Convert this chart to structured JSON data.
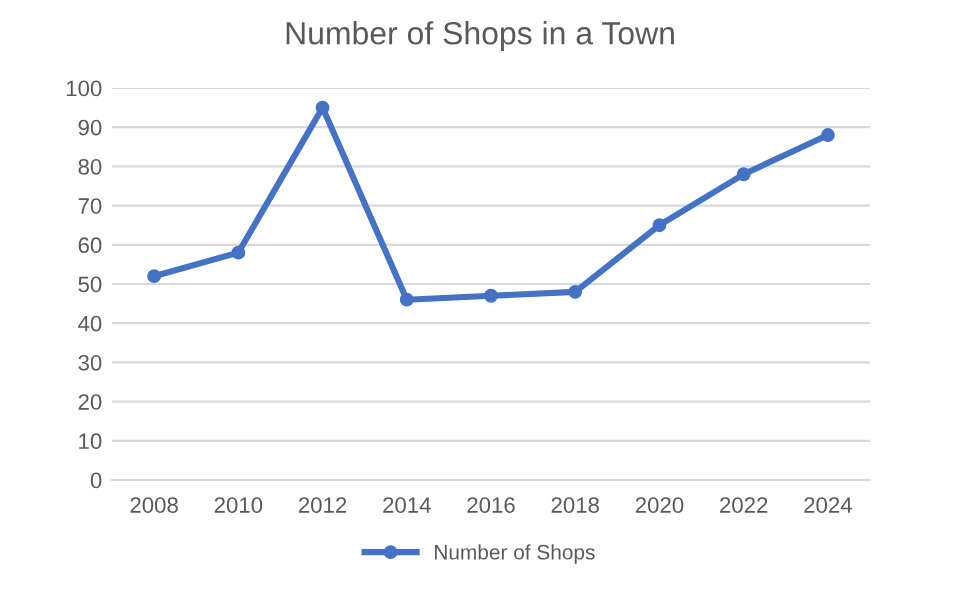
{
  "chart_data": {
    "type": "line",
    "title": "Number of Shops in a Town",
    "categories": [
      "2008",
      "2010",
      "2012",
      "2014",
      "2016",
      "2018",
      "2020",
      "2022",
      "2024"
    ],
    "series": [
      {
        "name": "Number of Shops",
        "color": "#4472c4",
        "values": [
          52,
          58,
          95,
          46,
          47,
          48,
          65,
          78,
          88
        ]
      }
    ],
    "ylim": [
      0,
      100
    ],
    "yticks": [
      0,
      10,
      20,
      30,
      40,
      50,
      60,
      70,
      80,
      90,
      100
    ],
    "grid": "y",
    "legend": "bottom",
    "marker": "circle",
    "line_style": "solid"
  }
}
